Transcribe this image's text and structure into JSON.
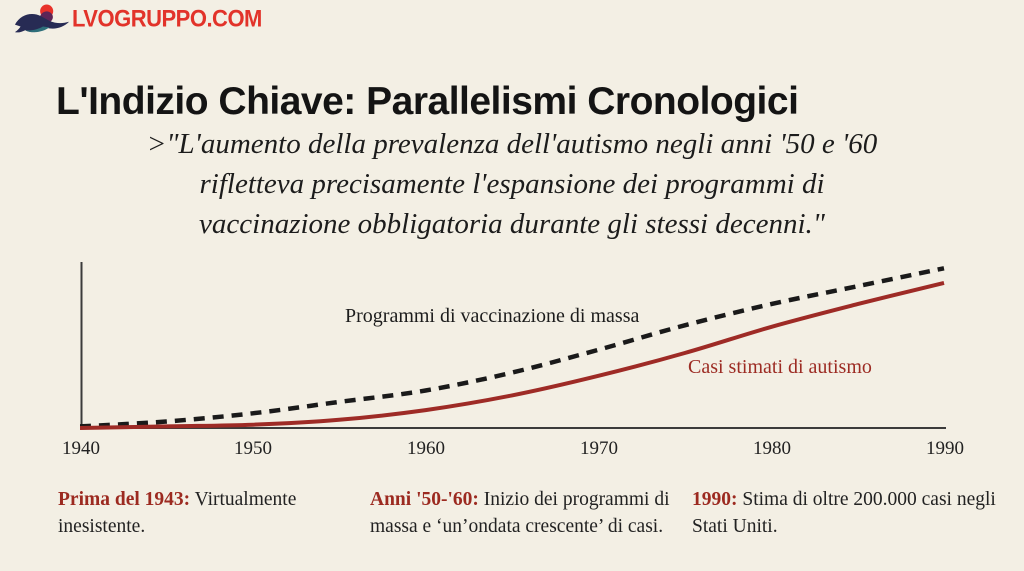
{
  "page": {
    "background": "#f3efe4"
  },
  "logo": {
    "text": "LVOGRUPPO.COM",
    "icon": "bird-logo",
    "text_color": "#e2332a",
    "icon_colors": {
      "body": "#272b54",
      "accent": "#2e6f7a",
      "head": "#e8322a"
    }
  },
  "title": "L'Indizio Chiave: Parallelismi Cronologici",
  "quote": {
    "line1": ">\"L'aumento della prevalenza dell'autismo negli anni '50 e '60",
    "line2": "rifletteva precisamente l'espansione dei programmi di",
    "line3": "vaccinazione obbligatoria durante gli stessi decenni.\""
  },
  "chart_data": {
    "type": "line",
    "title": "",
    "xlabel": "",
    "ylabel": "",
    "x": [
      1940,
      1945,
      1950,
      1955,
      1960,
      1965,
      1970,
      1975,
      1980,
      1985,
      1990
    ],
    "categories": [
      "1940",
      "1950",
      "1960",
      "1970",
      "1980",
      "1990"
    ],
    "xlim": [
      1940,
      1990
    ],
    "ylim": [
      0,
      100
    ],
    "grid": false,
    "legend_position": "inline-labels",
    "series": [
      {
        "name": "Programmi di vaccinazione di massa",
        "style": "dashed",
        "color": "#1a1a1a",
        "values": [
          1,
          4,
          9,
          16,
          23,
          34,
          48,
          63,
          76,
          87,
          98
        ]
      },
      {
        "name": "Casi stimati di autismo",
        "style": "solid",
        "color": "#9e2b26",
        "values": [
          0,
          1,
          2,
          5,
          11,
          20,
          32,
          46,
          62,
          76,
          89
        ]
      }
    ],
    "axis_color": "#3b3b3b"
  },
  "annotations": [
    {
      "lead": "Prima del 1943:",
      "text": " Virtualmente inesistente."
    },
    {
      "lead": "Anni '50-'60:",
      "text": " Inizio dei programmi di massa e ‘un’ondata crescente’ di casi."
    },
    {
      "lead": "1990:",
      "text": " Stima di oltre 200.000 casi negli Stati Uniti."
    }
  ]
}
